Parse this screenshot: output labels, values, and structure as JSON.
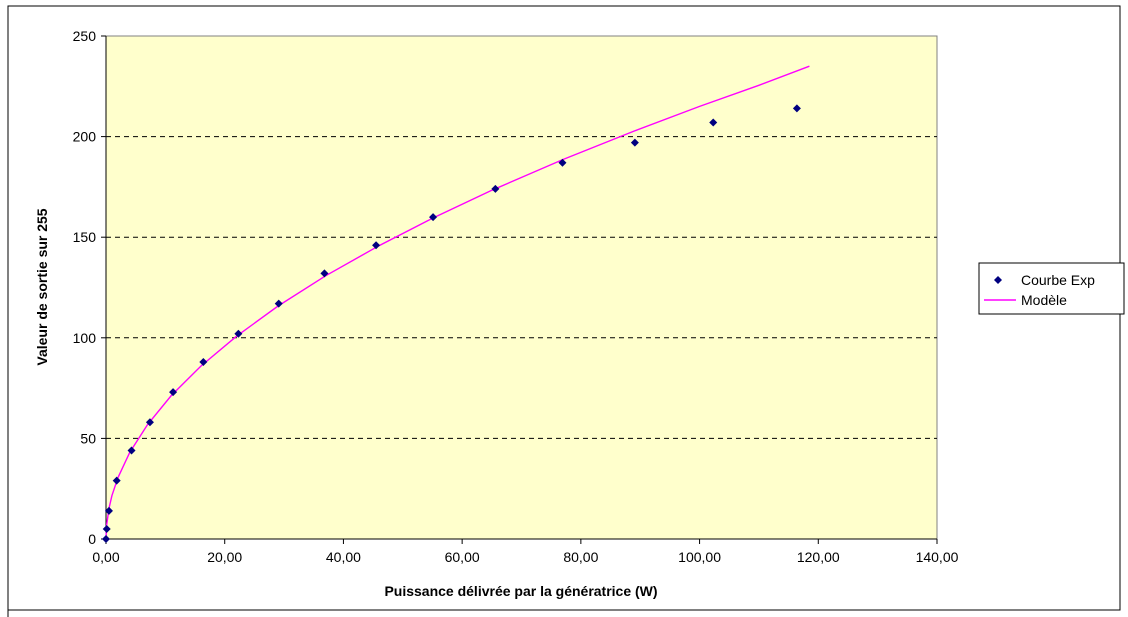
{
  "chart_data": {
    "type": "scatter",
    "title": "",
    "xlabel": "Puissance délivrée par la génératrice (W)",
    "ylabel": "Valeur de sortie sur 255",
    "xlim": [
      0,
      140
    ],
    "ylim": [
      0,
      250
    ],
    "x_ticks": [
      "0,00",
      "20,00",
      "40,00",
      "60,00",
      "80,00",
      "100,00",
      "120,00",
      "140,00"
    ],
    "x_tick_values": [
      0,
      20,
      40,
      60,
      80,
      100,
      120,
      140
    ],
    "y_ticks": [
      "0",
      "50",
      "100",
      "150",
      "200",
      "250"
    ],
    "y_tick_values": [
      0,
      50,
      100,
      150,
      200,
      250
    ],
    "grid": "horizontal-dashed",
    "legend_position": "right",
    "colors": {
      "plot_background": "#FFFFCC",
      "marker": "#000080",
      "model_line": "#FF00FF",
      "gridline": "#000000"
    },
    "series": [
      {
        "name": "Courbe Exp",
        "kind": "scatter",
        "points": [
          {
            "x": 0.0,
            "y": 0
          },
          {
            "x": 0.12,
            "y": 5
          },
          {
            "x": 0.5,
            "y": 14
          },
          {
            "x": 1.8,
            "y": 29
          },
          {
            "x": 4.3,
            "y": 44
          },
          {
            "x": 7.4,
            "y": 58
          },
          {
            "x": 11.3,
            "y": 73
          },
          {
            "x": 16.4,
            "y": 88
          },
          {
            "x": 22.3,
            "y": 102
          },
          {
            "x": 29.1,
            "y": 117
          },
          {
            "x": 36.8,
            "y": 132
          },
          {
            "x": 45.5,
            "y": 146
          },
          {
            "x": 55.1,
            "y": 160
          },
          {
            "x": 65.6,
            "y": 174
          },
          {
            "x": 76.9,
            "y": 187
          },
          {
            "x": 89.1,
            "y": 197
          },
          {
            "x": 102.3,
            "y": 207
          },
          {
            "x": 116.4,
            "y": 214
          }
        ]
      },
      {
        "name": "Modèle",
        "kind": "line",
        "points": [
          {
            "x": 0,
            "y": 0
          },
          {
            "x": 0.1,
            "y": 6.8
          },
          {
            "x": 0.5,
            "y": 15.2
          },
          {
            "x": 1,
            "y": 21.5
          },
          {
            "x": 2,
            "y": 30.4
          },
          {
            "x": 4,
            "y": 43.0
          },
          {
            "x": 7,
            "y": 56.9
          },
          {
            "x": 11,
            "y": 71.3
          },
          {
            "x": 16,
            "y": 86.0
          },
          {
            "x": 22,
            "y": 100.8
          },
          {
            "x": 29,
            "y": 115.8
          },
          {
            "x": 37,
            "y": 130.8
          },
          {
            "x": 46,
            "y": 145.8
          },
          {
            "x": 55,
            "y": 159.4
          },
          {
            "x": 65,
            "y": 173.3
          },
          {
            "x": 77,
            "y": 188.6
          },
          {
            "x": 89,
            "y": 202.8
          },
          {
            "x": 100,
            "y": 215.0
          },
          {
            "x": 110,
            "y": 225.5
          },
          {
            "x": 118.5,
            "y": 235
          }
        ]
      }
    ]
  }
}
